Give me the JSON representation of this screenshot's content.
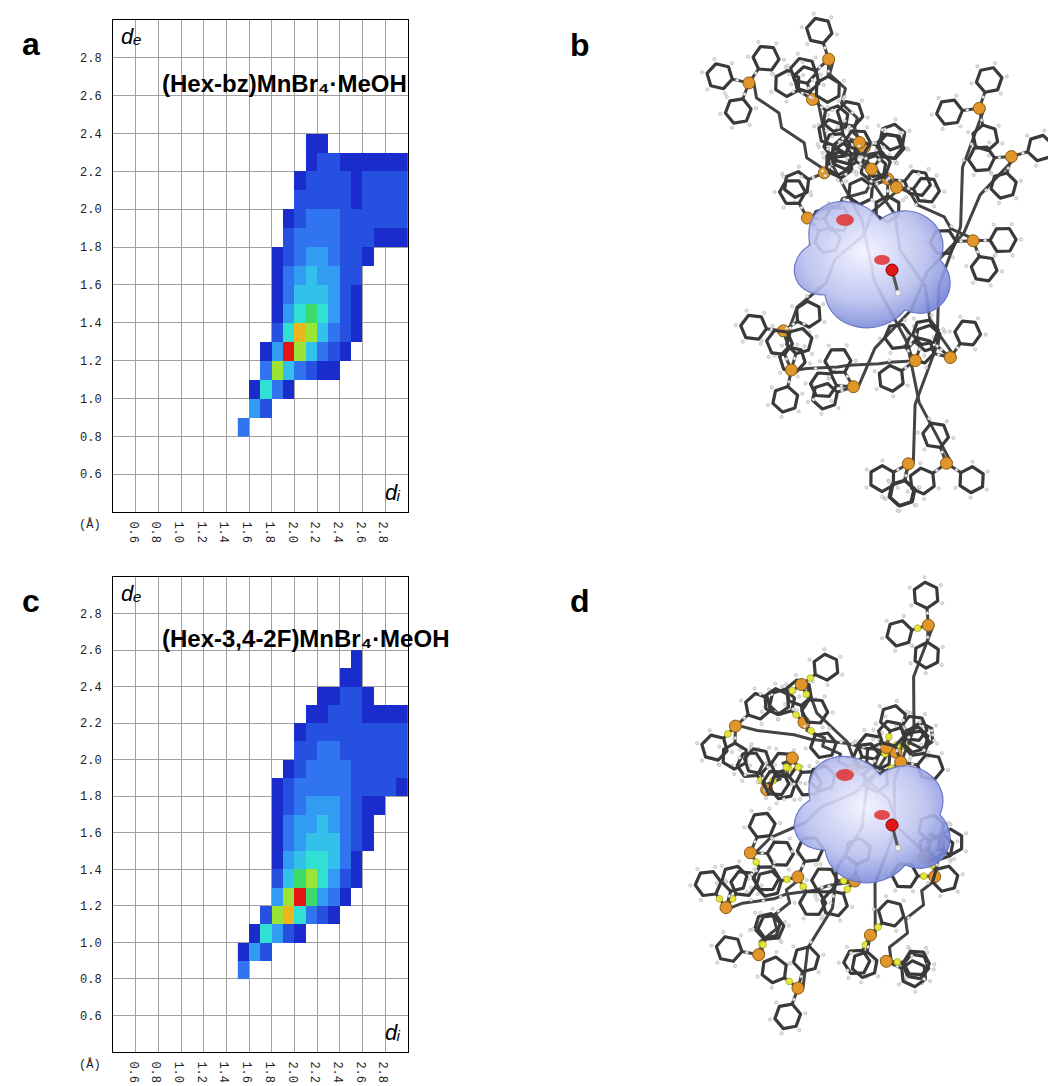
{
  "chart_data": [
    {
      "type": "heatmap",
      "label": "a",
      "title": "(Hex-bz)MnBr₄·MeOH",
      "xlabel": "dᵢ",
      "ylabel": "dₑ",
      "unit": "(Å)",
      "x": [
        1.55,
        1.65,
        1.75,
        1.85,
        1.95,
        2.05,
        2.15,
        2.25,
        2.35,
        2.45,
        2.55,
        2.65,
        2.75,
        2.85,
        2.95
      ],
      "y": [
        0.85,
        0.95,
        1.05,
        1.15,
        1.25,
        1.35,
        1.45,
        1.55,
        1.65,
        1.75,
        1.85,
        1.95,
        2.05,
        2.15,
        2.25,
        2.35,
        2.45,
        2.55
      ],
      "z": [
        [
          3,
          null,
          null,
          null,
          null,
          null,
          null,
          null,
          null,
          null,
          null,
          null,
          null,
          null,
          null
        ],
        [
          null,
          4,
          2,
          null,
          null,
          null,
          null,
          null,
          null,
          null,
          null,
          null,
          null,
          null,
          null
        ],
        [
          null,
          1,
          6,
          3,
          1,
          null,
          null,
          null,
          null,
          null,
          null,
          null,
          null,
          null,
          null
        ],
        [
          null,
          null,
          3,
          8,
          5,
          3,
          2,
          1,
          1,
          null,
          null,
          null,
          null,
          null,
          null
        ],
        [
          null,
          null,
          1,
          4,
          10,
          8,
          5,
          3,
          2,
          1,
          null,
          null,
          null,
          null,
          null
        ],
        [
          null,
          null,
          null,
          2,
          6,
          9,
          8,
          5,
          3,
          2,
          1,
          null,
          null,
          null,
          null
        ],
        [
          null,
          null,
          null,
          1,
          4,
          6,
          7,
          6,
          4,
          2,
          1,
          null,
          null,
          null,
          null
        ],
        [
          null,
          null,
          null,
          1,
          3,
          5,
          5,
          5,
          4,
          2,
          1,
          null,
          null,
          null,
          null
        ],
        [
          null,
          null,
          null,
          1,
          3,
          4,
          5,
          4,
          4,
          2,
          2,
          null,
          null,
          null,
          null
        ],
        [
          null,
          null,
          null,
          1,
          2,
          3,
          4,
          4,
          3,
          2,
          2,
          1,
          null,
          null,
          null
        ],
        [
          null,
          null,
          null,
          null,
          2,
          3,
          3,
          3,
          3,
          2,
          2,
          2,
          1,
          1,
          1
        ],
        [
          null,
          null,
          null,
          null,
          1,
          2,
          3,
          3,
          3,
          2,
          2,
          2,
          2,
          2,
          2
        ],
        [
          null,
          null,
          null,
          null,
          null,
          2,
          2,
          2,
          2,
          2,
          1,
          2,
          2,
          2,
          2
        ],
        [
          null,
          null,
          null,
          null,
          null,
          1,
          2,
          2,
          2,
          2,
          1,
          2,
          2,
          2,
          2
        ],
        [
          null,
          null,
          null,
          null,
          null,
          null,
          1,
          2,
          2,
          1,
          1,
          1,
          1,
          1,
          1
        ],
        [
          null,
          null,
          null,
          null,
          null,
          null,
          1,
          1,
          null,
          null,
          null,
          null,
          null,
          null,
          null
        ],
        [
          null,
          null,
          null,
          null,
          null,
          null,
          null,
          null,
          null,
          null,
          null,
          null,
          null,
          null,
          null
        ],
        [
          null,
          null,
          null,
          null,
          null,
          null,
          null,
          null,
          null,
          null,
          null,
          null,
          null,
          null,
          null
        ]
      ],
      "xlim": [
        0.4,
        3.0
      ],
      "ylim": [
        0.4,
        3.0
      ],
      "xticks": [
        0.6,
        0.8,
        {
          "value": 1,
          "label": "1.0"
        },
        1.2,
        1.4,
        1.6,
        1.8,
        {
          "value": 2,
          "label": "2.0"
        },
        2.2,
        2.4,
        2.6,
        2.8
      ],
      "yticks": [
        0.6,
        0.8,
        {
          "value": 1,
          "label": "1.0"
        },
        1.2,
        1.4,
        1.6,
        1.8,
        {
          "value": 2,
          "label": "2.0"
        },
        2.2,
        2.4,
        2.6,
        2.8
      ],
      "grid": true
    },
    {
      "type": "heatmap",
      "label": "c",
      "title": "(Hex-3,4-2F)MnBr₄·MeOH",
      "xlabel": "dᵢ",
      "ylabel": "dₑ",
      "unit": "(Å)",
      "x": [
        1.55,
        1.65,
        1.75,
        1.85,
        1.95,
        2.05,
        2.15,
        2.25,
        2.35,
        2.45,
        2.55,
        2.65,
        2.75,
        2.85,
        2.95
      ],
      "y": [
        0.85,
        0.95,
        1.05,
        1.15,
        1.25,
        1.35,
        1.45,
        1.55,
        1.65,
        1.75,
        1.85,
        1.95,
        2.05,
        2.15,
        2.25,
        2.35,
        2.45,
        2.55
      ],
      "z": [
        [
          3,
          null,
          null,
          null,
          null,
          null,
          null,
          null,
          null,
          null,
          null,
          null,
          null,
          null,
          null
        ],
        [
          1,
          4,
          2,
          null,
          null,
          null,
          null,
          null,
          null,
          null,
          null,
          null,
          null,
          null,
          null
        ],
        [
          null,
          1,
          6,
          4,
          2,
          1,
          null,
          null,
          null,
          null,
          null,
          null,
          null,
          null,
          null
        ],
        [
          null,
          null,
          2,
          8,
          9,
          6,
          3,
          2,
          1,
          null,
          null,
          null,
          null,
          null,
          null
        ],
        [
          null,
          null,
          null,
          4,
          8,
          10,
          7,
          4,
          3,
          1,
          null,
          null,
          null,
          null,
          null
        ],
        [
          null,
          null,
          null,
          2,
          5,
          7,
          8,
          6,
          4,
          2,
          1,
          null,
          null,
          null,
          null
        ],
        [
          null,
          null,
          null,
          1,
          4,
          5,
          6,
          6,
          5,
          3,
          1,
          null,
          null,
          null,
          null
        ],
        [
          null,
          null,
          null,
          1,
          3,
          4,
          5,
          5,
          5,
          3,
          2,
          1,
          null,
          null,
          null
        ],
        [
          null,
          null,
          null,
          1,
          3,
          4,
          4,
          5,
          4,
          3,
          2,
          1,
          null,
          null,
          null
        ],
        [
          null,
          null,
          null,
          1,
          2,
          3,
          4,
          4,
          4,
          3,
          2,
          1,
          1,
          null,
          null
        ],
        [
          null,
          null,
          null,
          1,
          2,
          3,
          3,
          3,
          3,
          3,
          2,
          2,
          2,
          2,
          1
        ],
        [
          null,
          null,
          null,
          null,
          1,
          2,
          3,
          3,
          3,
          3,
          2,
          2,
          2,
          2,
          2
        ],
        [
          null,
          null,
          null,
          null,
          null,
          2,
          2,
          3,
          3,
          2,
          2,
          2,
          2,
          2,
          2
        ],
        [
          null,
          null,
          null,
          null,
          null,
          1,
          2,
          2,
          2,
          2,
          2,
          2,
          2,
          2,
          2
        ],
        [
          null,
          null,
          null,
          null,
          null,
          null,
          1,
          1,
          2,
          2,
          2,
          1,
          1,
          1,
          1
        ],
        [
          null,
          null,
          null,
          null,
          null,
          null,
          null,
          1,
          1,
          2,
          2,
          1,
          null,
          null,
          null
        ],
        [
          null,
          null,
          null,
          null,
          null,
          null,
          null,
          null,
          null,
          1,
          1,
          null,
          null,
          null,
          null
        ],
        [
          null,
          null,
          null,
          null,
          null,
          null,
          null,
          null,
          null,
          null,
          1,
          null,
          null,
          null,
          null
        ]
      ],
      "xlim": [
        0.4,
        3.0
      ],
      "ylim": [
        0.4,
        3.0
      ],
      "xticks": [
        0.6,
        0.8,
        {
          "value": 1,
          "label": "1.0"
        },
        1.2,
        1.4,
        1.6,
        1.8,
        {
          "value": 2,
          "label": "2.0"
        },
        2.2,
        2.4,
        2.6,
        2.8
      ],
      "yticks": [
        0.6,
        0.8,
        {
          "value": 1,
          "label": "1.0"
        },
        1.2,
        1.4,
        1.6,
        1.8,
        {
          "value": 2,
          "label": "2.0"
        },
        2.2,
        2.4,
        2.6,
        2.8
      ],
      "grid": true
    }
  ],
  "figure_panels": [
    {
      "label": "b"
    },
    {
      "label": "d"
    }
  ]
}
